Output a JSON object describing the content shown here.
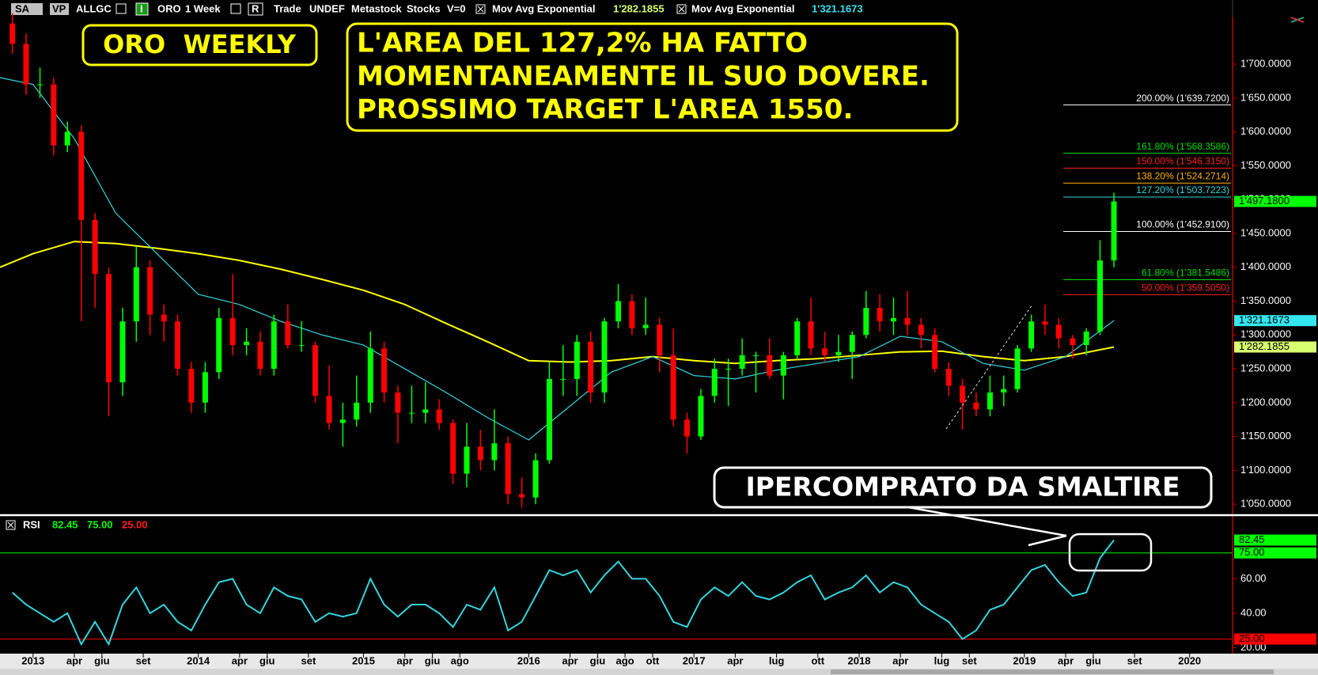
{
  "toolbar": [
    "SA",
    "VP",
    "ALLGC",
    "I",
    "ORO",
    "1 Week",
    "R",
    "Trade",
    "UNDEF",
    "Metastock",
    "Stocks",
    "V=0"
  ],
  "chart_data": [
    {
      "type": "candlestick",
      "x": [
        2012.875,
        2012.958,
        2013.042,
        2013.125,
        2013.208,
        2013.292,
        2013.375,
        2013.458,
        2013.542,
        2013.625,
        2013.708,
        2013.792,
        2013.875,
        2013.958,
        2014.042,
        2014.125,
        2014.208,
        2014.292,
        2014.375,
        2014.458,
        2014.542,
        2014.625,
        2014.708,
        2014.792,
        2014.875,
        2014.958,
        2015.042,
        2015.125,
        2015.208,
        2015.292,
        2015.375,
        2015.458,
        2015.542,
        2015.625,
        2015.708,
        2015.792,
        2015.875,
        2015.958,
        2016.042,
        2016.125,
        2016.208,
        2016.292,
        2016.375,
        2016.458,
        2016.542,
        2016.625,
        2016.708,
        2016.792,
        2016.875,
        2016.958,
        2017.042,
        2017.125,
        2017.208,
        2017.292,
        2017.375,
        2017.458,
        2017.542,
        2017.625,
        2017.708,
        2017.792,
        2017.875,
        2017.958,
        2018.042,
        2018.125,
        2018.208,
        2018.292,
        2018.375,
        2018.458,
        2018.542,
        2018.625,
        2018.708,
        2018.792,
        2018.875,
        2018.958,
        2019.042,
        2019.125,
        2019.208,
        2019.292,
        2019.375,
        2019.458,
        2019.542
      ],
      "open": [
        1760,
        1730,
        1670,
        1670,
        1580,
        1600,
        1470,
        1390,
        1230,
        1320,
        1400,
        1330,
        1320,
        1250,
        1200,
        1245,
        1325,
        1285,
        1290,
        1250,
        1320,
        1285,
        1285,
        1210,
        1170,
        1175,
        1200,
        1280,
        1215,
        1185,
        1185,
        1190,
        1170,
        1095,
        1135,
        1115,
        1140,
        1065,
        1060,
        1115,
        1235,
        1235,
        1290,
        1215,
        1320,
        1350,
        1310,
        1315,
        1270,
        1175,
        1150,
        1210,
        1250,
        1250,
        1270,
        1270,
        1240,
        1270,
        1320,
        1280,
        1270,
        1275,
        1300,
        1340,
        1320,
        1325,
        1315,
        1300,
        1250,
        1225,
        1200,
        1190,
        1215,
        1220,
        1280,
        1320,
        1315,
        1295,
        1285,
        1305,
        1410
      ],
      "high": [
        1775,
        1745,
        1695,
        1680,
        1615,
        1610,
        1480,
        1400,
        1340,
        1430,
        1410,
        1345,
        1330,
        1260,
        1260,
        1340,
        1390,
        1310,
        1305,
        1330,
        1345,
        1320,
        1290,
        1255,
        1200,
        1240,
        1305,
        1290,
        1225,
        1225,
        1230,
        1205,
        1175,
        1170,
        1160,
        1190,
        1150,
        1090,
        1125,
        1260,
        1285,
        1300,
        1305,
        1325,
        1375,
        1360,
        1355,
        1325,
        1310,
        1185,
        1220,
        1265,
        1265,
        1295,
        1275,
        1295,
        1275,
        1325,
        1355,
        1305,
        1300,
        1305,
        1365,
        1360,
        1355,
        1365,
        1325,
        1310,
        1260,
        1235,
        1215,
        1240,
        1240,
        1285,
        1330,
        1345,
        1325,
        1300,
        1310,
        1440,
        1510
      ],
      "low": [
        1715,
        1655,
        1650,
        1565,
        1570,
        1320,
        1340,
        1180,
        1210,
        1290,
        1300,
        1290,
        1240,
        1185,
        1185,
        1235,
        1270,
        1270,
        1240,
        1240,
        1280,
        1275,
        1200,
        1160,
        1135,
        1165,
        1185,
        1200,
        1140,
        1170,
        1170,
        1160,
        1080,
        1075,
        1100,
        1100,
        1050,
        1045,
        1050,
        1110,
        1210,
        1210,
        1200,
        1200,
        1310,
        1300,
        1300,
        1245,
        1165,
        1125,
        1145,
        1200,
        1195,
        1240,
        1215,
        1235,
        1205,
        1265,
        1270,
        1260,
        1260,
        1235,
        1295,
        1305,
        1300,
        1300,
        1280,
        1245,
        1210,
        1160,
        1180,
        1180,
        1195,
        1215,
        1275,
        1300,
        1280,
        1265,
        1270,
        1300,
        1400
      ],
      "close": [
        1730,
        1670,
        1670,
        1580,
        1600,
        1470,
        1390,
        1230,
        1320,
        1400,
        1330,
        1320,
        1250,
        1200,
        1245,
        1325,
        1285,
        1290,
        1250,
        1320,
        1285,
        1285,
        1210,
        1170,
        1175,
        1200,
        1280,
        1215,
        1185,
        1185,
        1190,
        1170,
        1095,
        1135,
        1115,
        1140,
        1065,
        1060,
        1115,
        1235,
        1235,
        1290,
        1215,
        1320,
        1350,
        1310,
        1315,
        1270,
        1175,
        1150,
        1210,
        1250,
        1250,
        1270,
        1270,
        1240,
        1270,
        1320,
        1280,
        1270,
        1275,
        1300,
        1340,
        1320,
        1325,
        1315,
        1300,
        1250,
        1225,
        1200,
        1190,
        1215,
        1220,
        1280,
        1320,
        1315,
        1295,
        1285,
        1305,
        1410,
        1497.18
      ],
      "end_label": "1'497.1800",
      "up_color": "#00ff00",
      "down_color": "#ff0000",
      "end_color": "#00ff00",
      "lines": [
        {
          "name": "Mov Avg Exponential",
          "color": "#ffff00",
          "label_color": "#d8ff70",
          "end_label": "1'282.1855",
          "x": [
            2012.8,
            2013.0,
            2013.25,
            2013.5,
            2013.75,
            2014.0,
            2014.25,
            2014.5,
            2014.75,
            2015.0,
            2015.25,
            2015.5,
            2015.75,
            2016.0,
            2016.25,
            2016.5,
            2016.75,
            2017.0,
            2017.25,
            2017.5,
            2017.75,
            2018.0,
            2018.25,
            2018.5,
            2018.75,
            2019.0,
            2019.25,
            2019.542
          ],
          "values": [
            1400,
            1420,
            1438,
            1435,
            1428,
            1420,
            1410,
            1397,
            1382,
            1366,
            1345,
            1317,
            1290,
            1262,
            1260,
            1262,
            1268,
            1262,
            1258,
            1262,
            1265,
            1270,
            1275,
            1276,
            1268,
            1262,
            1268,
            1282.1855
          ]
        },
        {
          "name": "Mov Avg Exponential",
          "color": "#33d6e0",
          "label_color": "#33e6f0",
          "end_label": "1'321.1673",
          "x": [
            2012.8,
            2013.0,
            2013.25,
            2013.5,
            2013.75,
            2014.0,
            2014.25,
            2014.5,
            2014.75,
            2015.0,
            2015.25,
            2015.5,
            2015.75,
            2016.0,
            2016.25,
            2016.5,
            2016.75,
            2017.0,
            2017.25,
            2017.5,
            2017.75,
            2018.0,
            2018.25,
            2018.5,
            2018.75,
            2019.0,
            2019.25,
            2019.542
          ],
          "values": [
            1680,
            1670,
            1590,
            1480,
            1420,
            1360,
            1345,
            1320,
            1300,
            1285,
            1250,
            1215,
            1178,
            1145,
            1195,
            1245,
            1268,
            1240,
            1235,
            1248,
            1258,
            1268,
            1298,
            1290,
            1258,
            1248,
            1268,
            1321.1673
          ]
        }
      ],
      "fib_levels": [
        {
          "value": 1639.72,
          "label": "200.00% (1'639.7200)",
          "color": "#ffffff"
        },
        {
          "value": 1568.3586,
          "label": "161.80% (1'568.3586)",
          "color": "#00e000"
        },
        {
          "value": 1546.315,
          "label": "150.00% (1'546.3150)",
          "color": "#ff2020"
        },
        {
          "value": 1524.2714,
          "label": "138.20% (1'524.2714)",
          "color": "#ffb000"
        },
        {
          "value": 1503.7223,
          "label": "127.20% (1'503.7223)",
          "color": "#33d6e0"
        },
        {
          "value": 1452.91,
          "label": "100.00% (1'452.9100)",
          "color": "#ffffff"
        },
        {
          "value": 1381.5486,
          "label": "61.80% (1'381.5486)",
          "color": "#00e000"
        },
        {
          "value": 1359.505,
          "label": "50.00% (1'359.5050)",
          "color": "#ff2020"
        }
      ],
      "annotations": [
        "ORO  WEEKLY",
        "L'AREA DEL 127,2% HA FATTO",
        "MOMENTANEAMENTE IL SUO DOVERE.",
        "PROSSIMO TARGET L'AREA 1550.",
        "IPERCOMPRATO DA SMALTIRE"
      ],
      "xlim": [
        2012.8,
        2020.26
      ],
      "ylim": [
        1035,
        1769
      ],
      "yticks": [
        {
          "value": 1050,
          "label": "1'050.0000"
        },
        {
          "value": 1100,
          "label": "1'100.0000"
        },
        {
          "value": 1150,
          "label": "1'150.0000"
        },
        {
          "value": 1200,
          "label": "1'200.0000"
        },
        {
          "value": 1250,
          "label": "1'250.0000"
        },
        {
          "value": 1300,
          "label": "1'300.0000"
        },
        {
          "value": 1350,
          "label": "1'350.0000"
        },
        {
          "value": 1400,
          "label": "1'400.0000"
        },
        {
          "value": 1450,
          "label": "1'450.0000"
        },
        {
          "value": 1500,
          "label": "1'500.0000"
        },
        {
          "value": 1550,
          "label": "1'550.0000"
        },
        {
          "value": 1600,
          "label": "1'600.0000"
        },
        {
          "value": 1650,
          "label": "1'650.0000"
        },
        {
          "value": 1700,
          "label": "1'700.0000"
        }
      ]
    },
    {
      "type": "line",
      "title": "RSI",
      "x": [
        2012.875,
        2012.958,
        2013.042,
        2013.125,
        2013.208,
        2013.292,
        2013.375,
        2013.458,
        2013.542,
        2013.625,
        2013.708,
        2013.792,
        2013.875,
        2013.958,
        2014.042,
        2014.125,
        2014.208,
        2014.292,
        2014.375,
        2014.458,
        2014.542,
        2014.625,
        2014.708,
        2014.792,
        2014.875,
        2014.958,
        2015.042,
        2015.125,
        2015.208,
        2015.292,
        2015.375,
        2015.458,
        2015.542,
        2015.625,
        2015.708,
        2015.792,
        2015.875,
        2015.958,
        2016.042,
        2016.125,
        2016.208,
        2016.292,
        2016.375,
        2016.458,
        2016.542,
        2016.625,
        2016.708,
        2016.792,
        2016.875,
        2016.958,
        2017.042,
        2017.125,
        2017.208,
        2017.292,
        2017.375,
        2017.458,
        2017.542,
        2017.625,
        2017.708,
        2017.792,
        2017.875,
        2017.958,
        2018.042,
        2018.125,
        2018.208,
        2018.292,
        2018.375,
        2018.458,
        2018.542,
        2018.625,
        2018.708,
        2018.792,
        2018.875,
        2018.958,
        2019.042,
        2019.125,
        2019.208,
        2019.292,
        2019.375,
        2019.458,
        2019.542
      ],
      "series": [
        {
          "color": "#33d6e0",
          "tag_color": "#00ff00",
          "values": [
            52,
            45,
            40,
            35,
            40,
            22,
            35,
            22,
            45,
            55,
            40,
            45,
            35,
            30,
            45,
            58,
            60,
            45,
            40,
            55,
            50,
            48,
            35,
            40,
            38,
            40,
            60,
            45,
            38,
            45,
            45,
            40,
            32,
            45,
            42,
            55,
            30,
            35,
            50,
            65,
            62,
            65,
            52,
            62,
            70,
            60,
            60,
            50,
            35,
            32,
            48,
            55,
            50,
            58,
            50,
            48,
            52,
            58,
            62,
            48,
            52,
            55,
            62,
            52,
            58,
            55,
            45,
            40,
            35,
            25,
            30,
            42,
            45,
            55,
            65,
            68,
            58,
            50,
            52,
            72,
            82.45
          ]
        }
      ],
      "levels": [
        {
          "value": 75,
          "label": "75.00",
          "color": "#00ff00"
        },
        {
          "value": 25,
          "label": "25.00",
          "color": "#ff0000"
        }
      ],
      "xlim": [
        2012.8,
        2020.26
      ],
      "ylim": [
        17,
        96
      ],
      "yticks": [
        {
          "value": 20,
          "label": "20.00"
        },
        {
          "value": 40,
          "label": "40.00"
        },
        {
          "value": 60,
          "label": "60.00"
        }
      ],
      "xticks": [
        2013,
        {
          "value": 2013.25,
          "label": "apr"
        },
        {
          "value": 2013.417,
          "label": "giu"
        },
        {
          "value": 2013.667,
          "label": "set"
        },
        2014,
        {
          "value": 2014.25,
          "label": "apr"
        },
        {
          "value": 2014.417,
          "label": "giu"
        },
        {
          "value": 2014.667,
          "label": "set"
        },
        2015,
        {
          "value": 2015.25,
          "label": "apr"
        },
        {
          "value": 2015.417,
          "label": "giu"
        },
        {
          "value": 2015.583,
          "label": "ago"
        },
        2016,
        {
          "value": 2016.25,
          "label": "apr"
        },
        {
          "value": 2016.417,
          "label": "giu"
        },
        {
          "value": 2016.583,
          "label": "ago"
        },
        {
          "value": 2016.75,
          "label": "ott"
        },
        2017,
        {
          "value": 2017.25,
          "label": "apr"
        },
        {
          "value": 2017.5,
          "label": "lug"
        },
        {
          "value": 2017.75,
          "label": "ott"
        },
        2018,
        {
          "value": 2018.25,
          "label": "apr"
        },
        {
          "value": 2018.5,
          "label": "lug"
        },
        {
          "value": 2018.667,
          "label": "set"
        },
        2019,
        {
          "value": 2019.25,
          "label": "apr"
        },
        {
          "value": 2019.417,
          "label": "giu"
        },
        {
          "value": 2019.667,
          "label": "set"
        },
        2020
      ]
    }
  ]
}
